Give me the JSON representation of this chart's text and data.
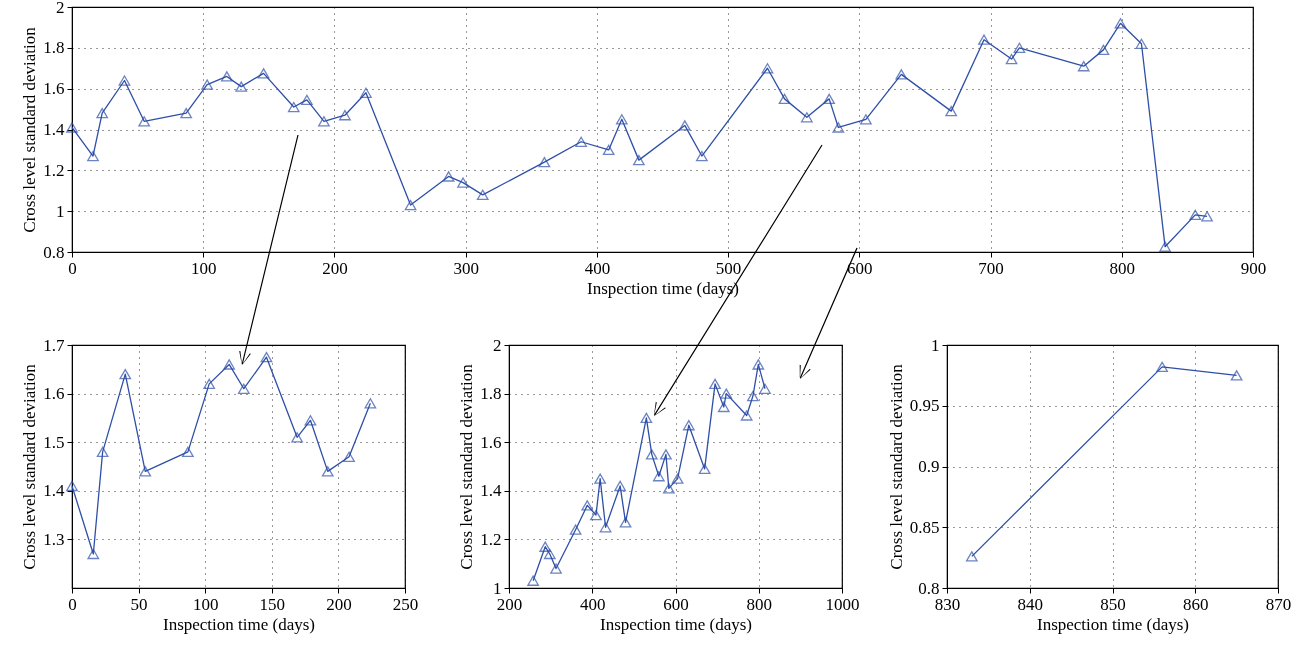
{
  "chart_data": [
    {
      "type": "line",
      "xlabel": "Inspection time (days)",
      "ylabel": "Cross level standard deviation",
      "xlim": [
        0,
        900
      ],
      "ylim": [
        0.8,
        2
      ],
      "xticks": [
        0,
        100,
        200,
        300,
        400,
        500,
        600,
        700,
        800,
        900
      ],
      "yticks": [
        0.8,
        1,
        1.2,
        1.4,
        1.6,
        1.8,
        2
      ],
      "grid": true,
      "marker": "triangle",
      "line_style": "solid",
      "series": [
        {
          "color": "#2e4fa8",
          "x": [
            0,
            16,
            23,
            40,
            55,
            87,
            103,
            118,
            129,
            146,
            169,
            179,
            192,
            208,
            224,
            258,
            287,
            298,
            313,
            360,
            388,
            409,
            419,
            432,
            467,
            480,
            530,
            543,
            560,
            577,
            584,
            605,
            632,
            670,
            695,
            716,
            722,
            771,
            786,
            799,
            815,
            833,
            856,
            865
          ],
          "values": [
            1.41,
            1.27,
            1.48,
            1.64,
            1.44,
            1.48,
            1.62,
            1.66,
            1.61,
            1.675,
            1.51,
            1.545,
            1.44,
            1.47,
            1.58,
            1.03,
            1.17,
            1.14,
            1.08,
            1.24,
            1.34,
            1.3,
            1.45,
            1.25,
            1.42,
            1.27,
            1.7,
            1.55,
            1.46,
            1.55,
            1.41,
            1.45,
            1.67,
            1.49,
            1.84,
            1.745,
            1.8,
            1.71,
            1.79,
            1.92,
            1.82,
            0.826,
            0.982,
            0.975
          ]
        }
      ]
    },
    {
      "type": "line",
      "xlabel": "Inspection time (days)",
      "ylabel": "Cross level standard deviation",
      "xlim": [
        0,
        250
      ],
      "ylim": [
        1.2,
        1.7
      ],
      "xticks": [
        0,
        50,
        100,
        150,
        200,
        250
      ],
      "yticks": [
        1.3,
        1.4,
        1.5,
        1.6,
        1.7
      ],
      "grid": true,
      "marker": "triangle",
      "line_style": "solid",
      "series": [
        {
          "color": "#2e4fa8",
          "x": [
            0,
            16,
            23,
            40,
            55,
            87,
            103,
            118,
            129,
            146,
            169,
            179,
            192,
            208,
            224
          ],
          "values": [
            1.41,
            1.27,
            1.48,
            1.64,
            1.44,
            1.48,
            1.62,
            1.66,
            1.61,
            1.675,
            1.51,
            1.545,
            1.44,
            1.47,
            1.58
          ]
        }
      ]
    },
    {
      "type": "line",
      "xlabel": "Inspection time (days)",
      "ylabel": "Cross level standard deviation",
      "xlim": [
        200,
        1000
      ],
      "ylim": [
        1,
        2
      ],
      "xticks": [
        200,
        400,
        600,
        800,
        1000
      ],
      "yticks": [
        1,
        1.2,
        1.4,
        1.6,
        1.8,
        2
      ],
      "grid": true,
      "marker": "triangle",
      "line_style": "solid",
      "series": [
        {
          "color": "#2e4fa8",
          "x": [
            258,
            287,
            298,
            313,
            360,
            388,
            409,
            419,
            432,
            467,
            480,
            530,
            543,
            560,
            577,
            584,
            605,
            632,
            670,
            695,
            716,
            722,
            771,
            786,
            799,
            815
          ],
          "values": [
            1.03,
            1.17,
            1.14,
            1.08,
            1.24,
            1.34,
            1.3,
            1.45,
            1.25,
            1.42,
            1.27,
            1.7,
            1.55,
            1.46,
            1.55,
            1.41,
            1.45,
            1.67,
            1.49,
            1.84,
            1.745,
            1.8,
            1.71,
            1.79,
            1.92,
            1.82
          ]
        }
      ]
    },
    {
      "type": "line",
      "xlabel": "Inspection time (days)",
      "ylabel": "Cross level standard deviation",
      "xlim": [
        830,
        870
      ],
      "ylim": [
        0.8,
        1
      ],
      "xticks": [
        830,
        840,
        850,
        860,
        870
      ],
      "yticks": [
        0.8,
        0.85,
        0.9,
        0.95,
        1
      ],
      "grid": true,
      "marker": "triangle",
      "line_style": "solid",
      "series": [
        {
          "color": "#2e4fa8",
          "x": [
            833,
            856,
            865
          ],
          "values": [
            0.826,
            0.982,
            0.975
          ]
        }
      ]
    }
  ]
}
